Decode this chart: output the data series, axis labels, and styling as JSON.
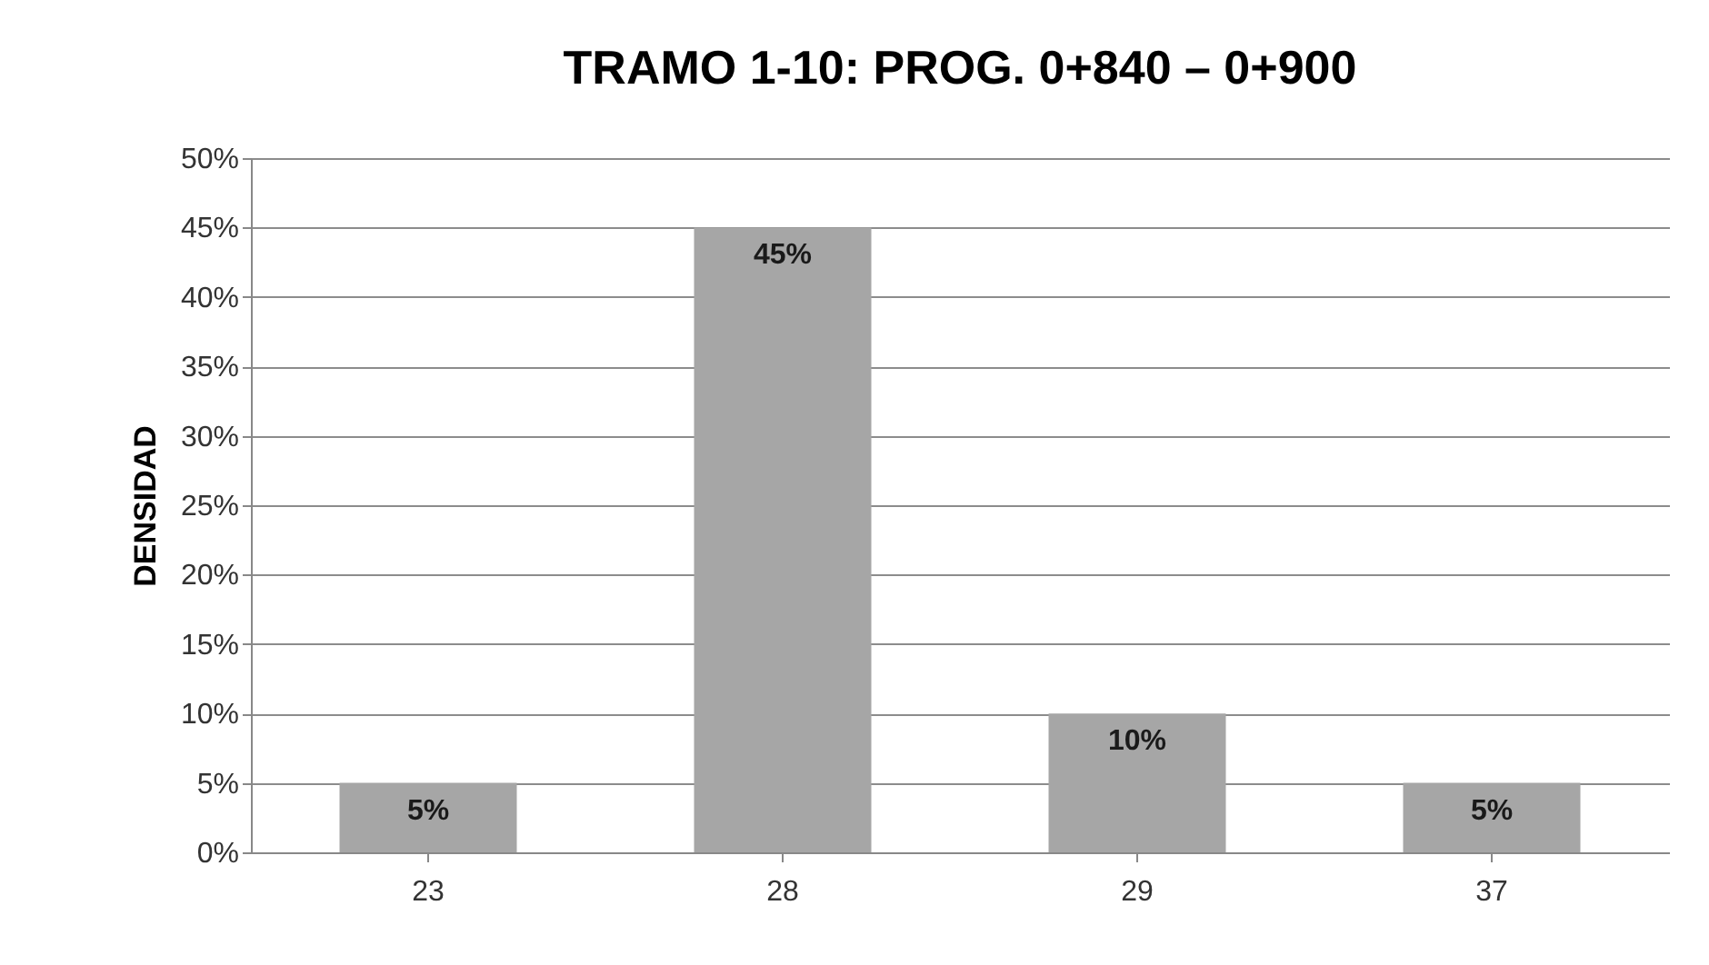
{
  "chart_data": {
    "type": "bar",
    "title": "TRAMO 1-10: PROG. 0+840 – 0+900",
    "ylabel": "DENSIDAD",
    "categories": [
      "23",
      "28",
      "29",
      "37"
    ],
    "values": [
      5,
      45,
      10,
      5
    ],
    "color": "#a6a6a6",
    "value_labels": [
      "5%",
      "45%",
      "10%",
      "5%"
    ],
    "ylim": [
      0,
      50
    ],
    "yticks": [
      {
        "value": 0,
        "label": "0%"
      },
      {
        "value": 5,
        "label": "5%"
      },
      {
        "value": 10,
        "label": "10%"
      },
      {
        "value": 15,
        "label": "15%"
      },
      {
        "value": 20,
        "label": "20%"
      },
      {
        "value": 25,
        "label": "25%"
      },
      {
        "value": 30,
        "label": "30%"
      },
      {
        "value": 35,
        "label": "35%"
      },
      {
        "value": 40,
        "label": "40%"
      },
      {
        "value": 45,
        "label": "45%"
      },
      {
        "value": 50,
        "label": "50%"
      }
    ],
    "grid": "y"
  }
}
